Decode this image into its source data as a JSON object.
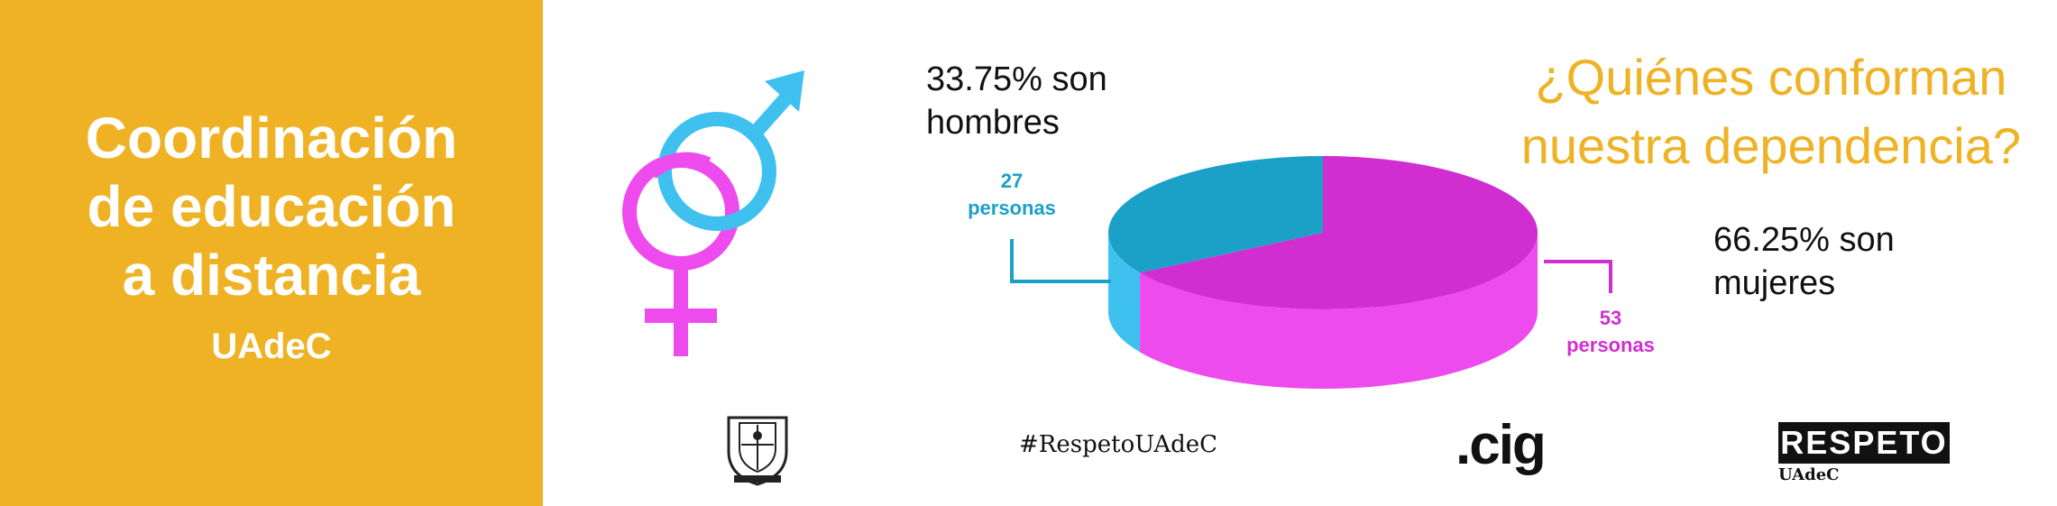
{
  "panel": {
    "title_lines": [
      "Coordinación",
      "de educación",
      "a distancia"
    ],
    "subtitle": "UAdeC",
    "background": "#EEB224"
  },
  "heading": {
    "lines": [
      "¿Quiénes conforman",
      "nuestra dependencia?"
    ],
    "color": "#EEB224"
  },
  "stats": {
    "men_lines": [
      "33.75% son",
      "hombres"
    ],
    "women_lines": [
      "66.25% son",
      "mujeres"
    ]
  },
  "chart_data": {
    "type": "pie",
    "labels": [
      "hombres",
      "mujeres"
    ],
    "values": [
      27,
      53
    ],
    "percentages": [
      33.75,
      66.25
    ],
    "data_labels": [
      [
        "27",
        "personas"
      ],
      [
        "53",
        "personas"
      ]
    ],
    "colors": [
      "#1BA0C8",
      "#D12ED2"
    ],
    "side_colors": [
      "#3FC1F0",
      "#EE4BEE"
    ],
    "three_d": true
  },
  "footer": {
    "hashtag": "#RespetoUAdeC",
    "cig_logo": ".cig",
    "respeto_logo": "RESPETO",
    "respeto_sub": "UAdeC"
  },
  "icons": {
    "gender": "male-female-symbols-icon",
    "male_color": "#3FC1F0",
    "female_color": "#EE4BEE",
    "crest": "university-crest-icon"
  }
}
